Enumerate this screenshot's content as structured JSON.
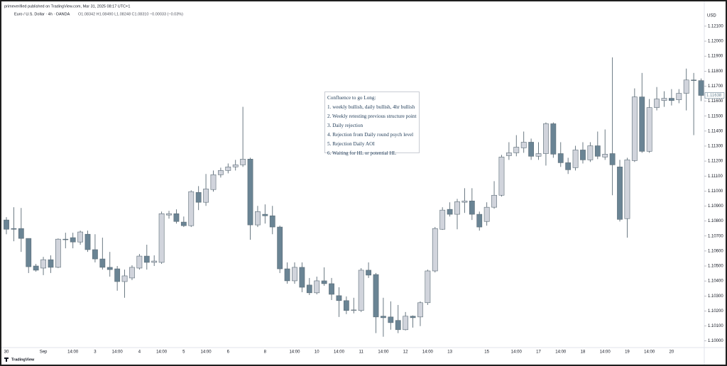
{
  "header": {
    "publisher": "primeverified published on TradingView.com, Mar 31, 2025 08:17 UTC+1",
    "symbol": "Euro / U.S. Dollar · 4h · OANDA",
    "ohlc": "O1.08342 H1.08490 L1.08248 C1.08310 −0.00033 (−0.03%)"
  },
  "footer": {
    "brand": "TradingView"
  },
  "annotation": {
    "title": "Confluence to go Long:",
    "items": [
      "1. weekly bullish, daily bullish, 4hr bullish",
      "2. Weekly retesting previous structure point",
      "3. Daily rejection",
      "4. Rejection from Daily round psych level",
      "5. Rejection Daily AOI",
      "6. Waiting for HL or potential HL"
    ]
  },
  "chart_data": {
    "type": "candlestick",
    "currency": "USD",
    "up_color": "#d1d4dc",
    "down_color": "#6a8494",
    "outline_color": "#5b6b76",
    "grid": false,
    "categories": [
      "30",
      null,
      null,
      null,
      null,
      "Sep",
      null,
      null,
      null,
      "14:00",
      null,
      null,
      "3",
      null,
      null,
      "14:00",
      null,
      null,
      "4",
      null,
      null,
      "14:00",
      null,
      null,
      "5",
      null,
      null,
      "14:00",
      null,
      null,
      "6",
      null,
      null,
      null,
      null,
      "8",
      null,
      null,
      null,
      "14:00",
      null,
      null,
      "10",
      null,
      null,
      "14:00",
      null,
      null,
      "11",
      null,
      null,
      "14:00",
      null,
      null,
      "12",
      null,
      null,
      "14:00",
      null,
      null,
      "13",
      null,
      null,
      null,
      null,
      "15",
      null,
      null,
      null,
      "14:00",
      null,
      null,
      "17",
      null,
      null,
      "14:00",
      null,
      null,
      "18",
      null,
      null,
      "14:00",
      null,
      null,
      "19",
      null,
      null,
      "14:00",
      null,
      null,
      "20",
      null,
      null,
      null,
      null
    ],
    "open": [
      1.10807,
      1.1075,
      1.1075,
      1.10684,
      1.105,
      1.10486,
      1.10542,
      1.10491,
      1.10679,
      1.10689,
      1.1066,
      1.10712,
      1.10609,
      1.10547,
      1.10491,
      1.10481,
      1.10396,
      1.1042,
      1.10486,
      1.10566,
      1.10524,
      1.10524,
      1.1084,
      1.10849,
      1.10793,
      1.10769,
      1.10991,
      1.10925,
      1.1101,
      1.11109,
      1.11137,
      1.11161,
      1.11175,
      1.11213,
      1.10774,
      1.10845,
      1.10835,
      1.1076,
      1.10481,
      1.10401,
      1.10491,
      1.10373,
      1.10321,
      1.10401,
      1.10382,
      1.10302,
      1.10269,
      1.10203,
      1.10203,
      1.10472,
      1.10443,
      1.10165,
      1.1016,
      1.10137,
      1.10075,
      1.10165,
      1.1016,
      1.10255,
      1.10467,
      1.10745,
      1.10878,
      1.10845,
      1.10925,
      1.10934,
      1.10845,
      1.10797,
      1.10892,
      1.10972,
      1.11236,
      1.11255,
      1.11288,
      1.11326,
      1.11232,
      1.1125,
      1.11449,
      1.1125,
      1.11189,
      1.11156,
      1.11274,
      1.11208,
      1.11302,
      1.11227,
      1.1125,
      1.11161,
      1.10816,
      1.11203,
      1.11628,
      1.11265,
      1.11557,
      1.11604,
      1.11619,
      1.11609,
      1.11652,
      1.11741,
      1.11737
    ],
    "high": [
      1.10826,
      1.10892,
      1.10887,
      1.10684,
      1.10514,
      1.10561,
      1.10571,
      1.10684,
      1.10722,
      1.10722,
      1.10736,
      1.10736,
      1.10712,
      1.10689,
      1.10594,
      1.105,
      1.10476,
      1.10505,
      1.1058,
      1.10642,
      1.10571,
      1.10863,
      1.10868,
      1.10878,
      1.1083,
      1.11005,
      1.11033,
      1.11114,
      1.11137,
      1.11156,
      1.11184,
      1.11208,
      1.11562,
      1.11222,
      1.10901,
      1.10911,
      1.10901,
      1.10769,
      1.10524,
      1.10524,
      1.10524,
      1.1042,
      1.10429,
      1.10491,
      1.1042,
      1.10358,
      1.10297,
      1.10288,
      1.10486,
      1.10524,
      1.10453,
      1.10288,
      1.10264,
      1.1024,
      1.10193,
      1.1017,
      1.10264,
      1.10476,
      1.1076,
      1.10892,
      1.10925,
      1.10948,
      1.11019,
      1.11019,
      1.10863,
      1.10925,
      1.11066,
      1.11241,
      1.11326,
      1.11373,
      1.11397,
      1.1135,
      1.11326,
      1.11458,
      1.11458,
      1.11326,
      1.11222,
      1.11302,
      1.11326,
      1.11326,
      1.11397,
      1.11411,
      1.11892,
      1.11208,
      1.11222,
      1.11685,
      1.11788,
      1.11614,
      1.11694,
      1.11666,
      1.1168,
      1.1168,
      1.11817,
      1.11788,
      1.11751
    ],
    "low": [
      1.10712,
      1.10665,
      1.10594,
      1.10453,
      1.10462,
      1.10439,
      1.10453,
      1.10486,
      1.10618,
      1.10618,
      1.10642,
      1.10594,
      1.10524,
      1.10476,
      1.10429,
      1.10335,
      1.10288,
      1.10406,
      1.10476,
      1.10476,
      1.105,
      1.10514,
      1.10816,
      1.10783,
      1.1076,
      1.1076,
      1.10873,
      1.10901,
      1.10996,
      1.1109,
      1.11118,
      1.11137,
      1.11161,
      1.10675,
      1.1076,
      1.10783,
      1.10712,
      1.10453,
      1.10382,
      1.10382,
      1.10325,
      1.10306,
      1.10311,
      1.10368,
      1.10273,
      1.1016,
      1.10179,
      1.10184,
      1.10193,
      1.1042,
      1.10052,
      1.10028,
      1.10075,
      1.10052,
      1.1007,
      1.10089,
      1.10099,
      1.1024,
      1.10457,
      1.10741,
      1.1083,
      1.10745,
      1.10854,
      1.10807,
      1.10736,
      1.10769,
      1.10882,
      1.10963,
      1.11208,
      1.11232,
      1.11255,
      1.11208,
      1.11208,
      1.1117,
      1.11222,
      1.11161,
      1.11114,
      1.11137,
      1.11184,
      1.11194,
      1.11213,
      1.11208,
      1.10972,
      1.10797,
      1.10689,
      1.11194,
      1.11255,
      1.11255,
      1.11538,
      1.11562,
      1.11571,
      1.11586,
      1.11538,
      1.11373,
      1.116
    ],
    "close": [
      1.10745,
      1.10745,
      1.10684,
      1.10495,
      1.10472,
      1.10542,
      1.10491,
      1.10679,
      1.10675,
      1.1066,
      1.10727,
      1.10609,
      1.10547,
      1.10491,
      1.10476,
      1.10396,
      1.10434,
      1.10491,
      1.10566,
      1.10524,
      1.10533,
      1.10849,
      1.10849,
      1.10797,
      1.10769,
      1.10996,
      1.10925,
      1.11014,
      1.11109,
      1.11137,
      1.11161,
      1.11175,
      1.11213,
      1.10774,
      1.10863,
      1.10835,
      1.1076,
      1.10481,
      1.10401,
      1.10491,
      1.10358,
      1.10321,
      1.10401,
      1.10382,
      1.10311,
      1.10269,
      1.10203,
      1.10207,
      1.10472,
      1.10439,
      1.1016,
      1.10155,
      1.10122,
      1.10075,
      1.10165,
      1.10155,
      1.10255,
      1.10467,
      1.1075,
      1.10873,
      1.10845,
      1.10929,
      1.10934,
      1.10845,
      1.1076,
      1.10892,
      1.10972,
      1.11227,
      1.11255,
      1.11293,
      1.11326,
      1.11232,
      1.1125,
      1.11449,
      1.11246,
      1.11189,
      1.11142,
      1.11274,
      1.11208,
      1.11302,
      1.11232,
      1.11246,
      1.11175,
      1.10811,
      1.11208,
      1.11628,
      1.11265,
      1.11557,
      1.11614,
      1.11619,
      1.11604,
      1.11652,
      1.11741,
      1.11737,
      1.11638
    ],
    "ylim": [
      1.0997,
      1.1218
    ],
    "yticks": [
      {
        "value": 1.1,
        "label": "1.10000"
      },
      {
        "value": 1.101,
        "label": "1.10100"
      },
      {
        "value": 1.102,
        "label": "1.10200"
      },
      {
        "value": 1.103,
        "label": "1.10300"
      },
      {
        "value": 1.104,
        "label": "1.10400"
      },
      {
        "value": 1.105,
        "label": "1.10500"
      },
      {
        "value": 1.106,
        "label": "1.10600"
      },
      {
        "value": 1.107,
        "label": "1.10700"
      },
      {
        "value": 1.108,
        "label": "1.10800"
      },
      {
        "value": 1.109,
        "label": "1.10900"
      },
      {
        "value": 1.11,
        "label": "1.11000"
      },
      {
        "value": 1.111,
        "label": "1.11100"
      },
      {
        "value": 1.112,
        "label": "1.11200"
      },
      {
        "value": 1.113,
        "label": "1.11300"
      },
      {
        "value": 1.114,
        "label": "1.11400"
      },
      {
        "value": 1.115,
        "label": "1.11500"
      },
      {
        "value": 1.116,
        "label": "1.11600"
      },
      {
        "value": 1.117,
        "label": "1.11700"
      },
      {
        "value": 1.118,
        "label": "1.11800"
      },
      {
        "value": 1.119,
        "label": "1.11900"
      },
      {
        "value": 1.12,
        "label": "1.12000"
      },
      {
        "value": 1.121,
        "label": "1.12100"
      }
    ]
  }
}
